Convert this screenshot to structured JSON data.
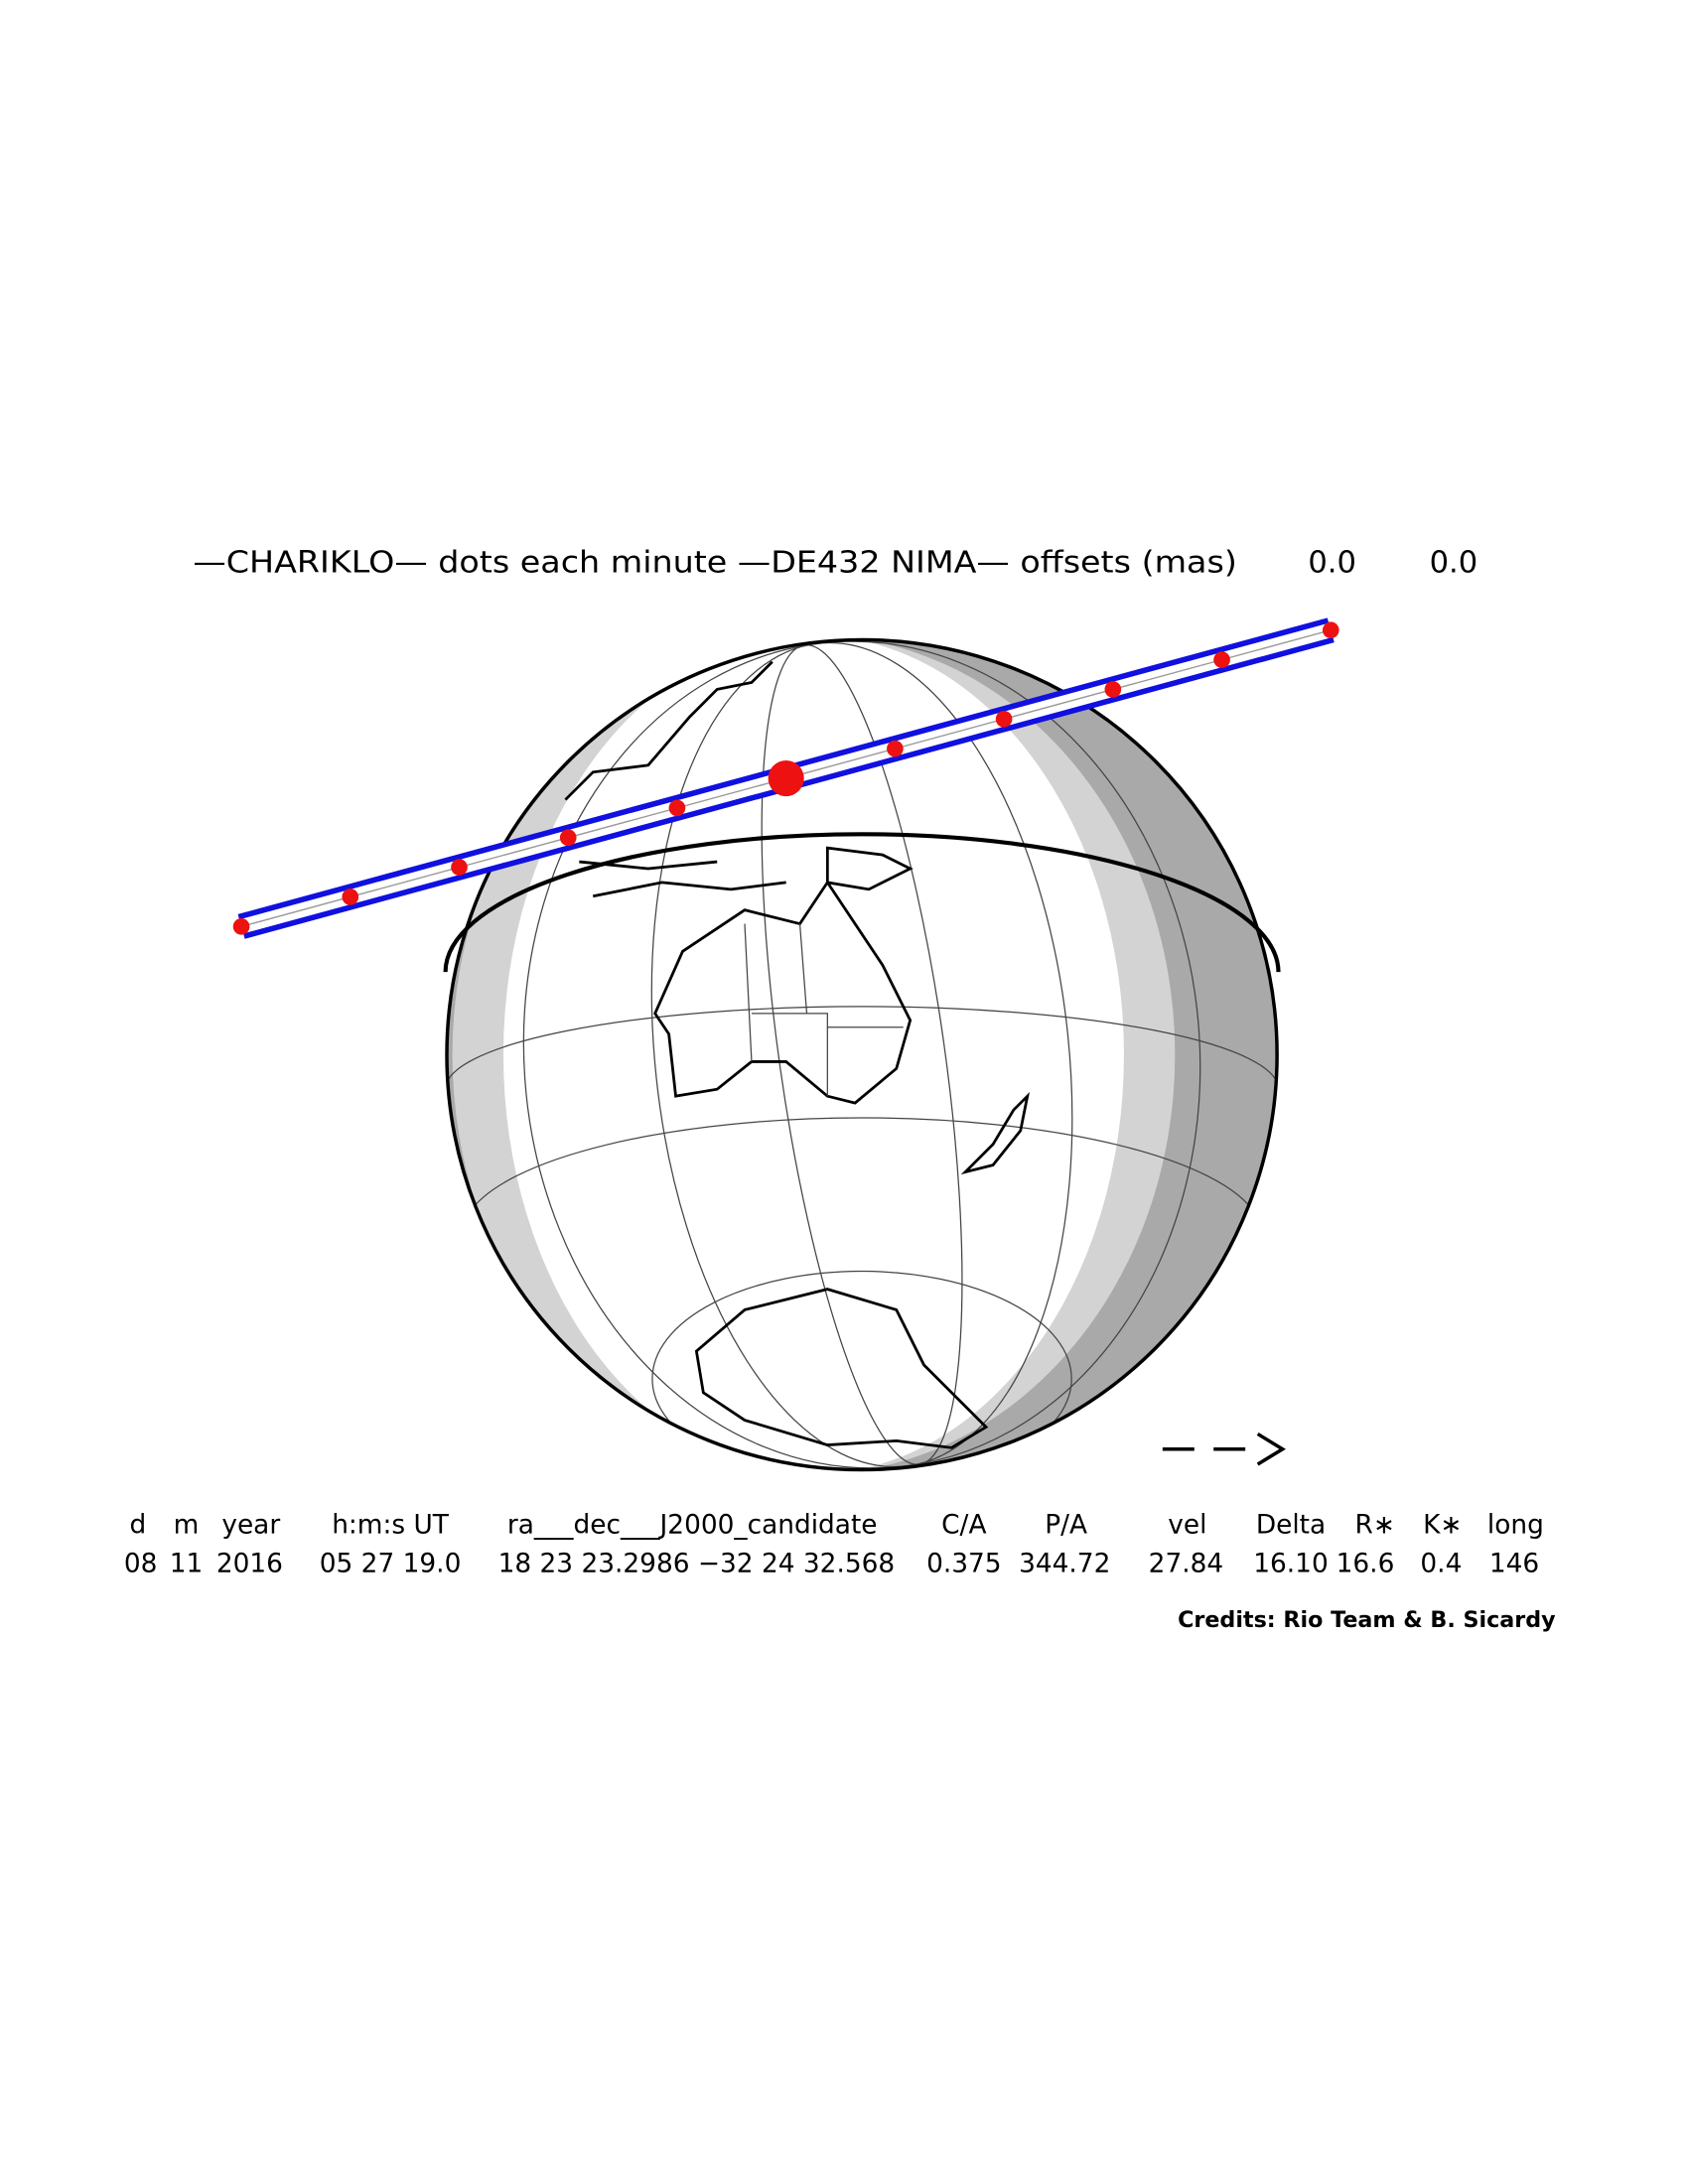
{
  "header": {
    "title": "—CHARIKLO— dots each minute —DE432 NIMA— offsets (mas)",
    "offsets": [
      "0.0",
      "0.0"
    ]
  },
  "table": {
    "columns": [
      "d",
      "m",
      "year",
      "h:m:s UT",
      "ra___dec___J2000_candidate",
      "C/A",
      "P/A",
      "vel",
      "Delta",
      "R∗",
      "K∗",
      "long"
    ],
    "rows": [
      [
        "08",
        "11",
        "2016",
        "05 27 19.0",
        "18 23 23.2986 −32 24 32.568",
        "0.375",
        "344.72",
        "27.84",
        "16.10",
        "16.6",
        "0.4",
        "146"
      ]
    ]
  },
  "credits": "Credits: Rio Team & B. Sicardy"
}
